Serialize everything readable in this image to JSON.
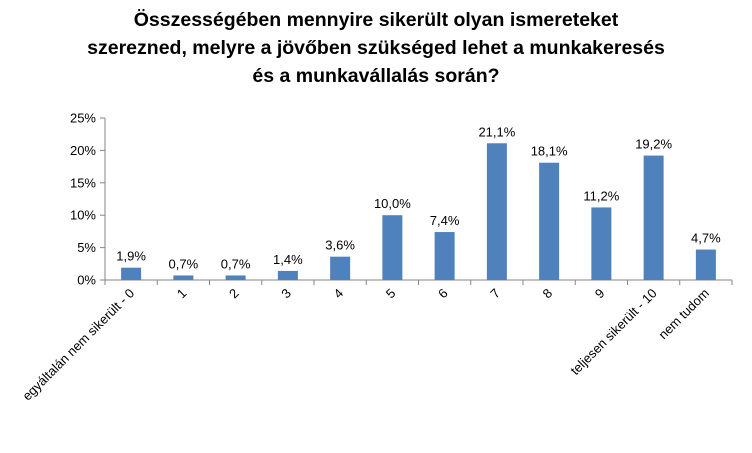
{
  "chart_data": {
    "type": "bar",
    "title_lines": [
      "Összességében mennyire sikerült olyan ismereteket",
      "szerezned, melyre a jövőben szükséged lehet a munkakeresés",
      "és a munkavállalás során?"
    ],
    "xlabel": "",
    "ylabel": "",
    "categories": [
      "egyáltalán nem sikerült - 0",
      "1",
      "2",
      "3",
      "4",
      "5",
      "6",
      "7",
      "8",
      "9",
      "teljesen sikerült - 10",
      "nem tudom"
    ],
    "values": [
      1.9,
      0.7,
      0.7,
      1.4,
      3.6,
      10.0,
      7.4,
      21.1,
      18.1,
      11.2,
      19.2,
      4.7
    ],
    "value_labels": [
      "1,9%",
      "0,7%",
      "0,7%",
      "1,4%",
      "3,6%",
      "10,0%",
      "7,4%",
      "21,1%",
      "18,1%",
      "11,2%",
      "19,2%",
      "4,7%"
    ],
    "ylim": [
      0,
      25
    ],
    "yticks": [
      0,
      5,
      10,
      15,
      20,
      25
    ],
    "ytick_labels": [
      "0%",
      "5%",
      "10%",
      "15%",
      "20%",
      "25%"
    ],
    "grid": false,
    "legend": "none",
    "bar_color": "#4F81BD"
  }
}
